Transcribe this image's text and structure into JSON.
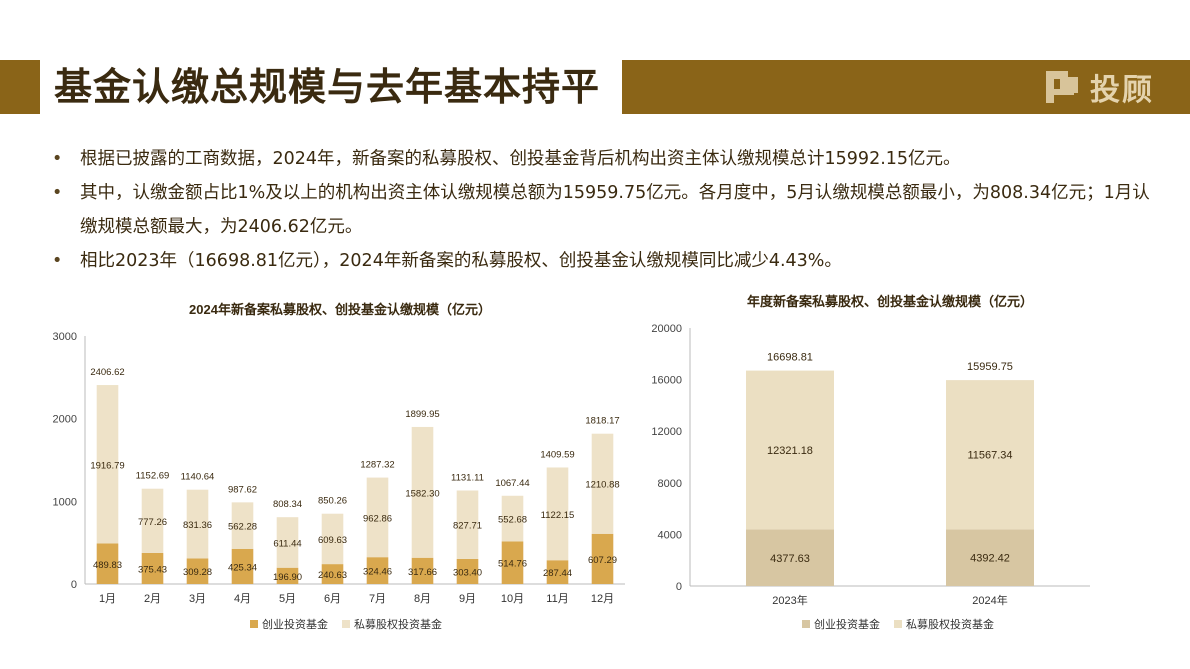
{
  "header": {
    "title": "基金认缴总规模与去年基本持平",
    "logo_text": "投顾"
  },
  "bullets": [
    "根据已披露的工商数据，2024年，新备案的私募股权、创投基金背后机构出资主体认缴规模总计15992.15亿元。",
    "其中，认缴金额占比1%及以上的机构出资主体认缴规模总额为15959.75亿元。各月度中，5月认缴规模总额最小，为808.34亿元；1月认缴规模总额最大，为2406.62亿元。",
    "相比2023年（16698.81亿元），2024年新备案的私募股权、创投基金认缴规模同比减少4.43%。"
  ],
  "colors": {
    "accent": "#8a6418",
    "venture": "#d9a84e",
    "private_equity": "#eee2c8",
    "venture_2": "#d7c6a2",
    "pe_2": "#ebdfc2"
  },
  "chart_data": [
    {
      "type": "bar",
      "stacked": true,
      "title": "2024年新备案私募股权、创投基金认缴规模（亿元）",
      "categories": [
        "1月",
        "2月",
        "3月",
        "4月",
        "5月",
        "6月",
        "7月",
        "8月",
        "9月",
        "10月",
        "11月",
        "12月"
      ],
      "series": [
        {
          "name": "创业投资基金",
          "values": [
            489.83,
            375.43,
            309.28,
            425.34,
            196.9,
            240.63,
            324.46,
            317.66,
            303.4,
            514.76,
            287.44,
            607.29
          ],
          "labels": [
            "489.83",
            "375.43",
            "309.28",
            "425.34",
            "196.90",
            "240.63",
            "324.46",
            "317.66",
            "303.40",
            "514.76",
            "287.44",
            "607.29"
          ]
        },
        {
          "name": "私募股权投资基金",
          "values": [
            1916.79,
            777.26,
            831.36,
            562.28,
            611.44,
            609.63,
            962.86,
            1582.3,
            827.71,
            552.68,
            1122.15,
            1210.88
          ],
          "labels": [
            "1916.79",
            "777.26",
            "831.36",
            "562.28",
            "611.44",
            "609.63",
            "962.86",
            "1582.30",
            "827.71",
            "552.68",
            "1122.15",
            "1210.88"
          ]
        }
      ],
      "totals": [
        "2406.62",
        "1152.69",
        "1140.64",
        "987.62",
        "808.34",
        "850.26",
        "1287.32",
        "1899.95",
        "1131.11",
        "1067.44",
        "1409.59",
        "1818.17"
      ],
      "total_values": [
        2406.62,
        1152.69,
        1140.64,
        987.62,
        808.34,
        850.26,
        1287.32,
        1899.95,
        1131.11,
        1067.44,
        1409.59,
        1818.17
      ],
      "ylim": [
        0,
        3000
      ],
      "yticks": [
        "0",
        "1000",
        "2000",
        "3000"
      ],
      "legend": "bottom"
    },
    {
      "type": "bar",
      "stacked": true,
      "title": "年度新备案私募股权、创投基金认缴规模（亿元）",
      "categories": [
        "2023年",
        "2024年"
      ],
      "series": [
        {
          "name": "创业投资基金",
          "values": [
            4377.63,
            4392.42
          ],
          "labels": [
            "4377.63",
            "4392.42"
          ]
        },
        {
          "name": "私募股权投资基金",
          "values": [
            12321.18,
            11567.34
          ],
          "labels": [
            "12321.18",
            "11567.34"
          ]
        }
      ],
      "totals": [
        "16698.81",
        "15959.75"
      ],
      "total_values": [
        16698.81,
        15959.75
      ],
      "ylim": [
        0,
        20000
      ],
      "yticks": [
        "0",
        "4000",
        "8000",
        "12000",
        "16000",
        "20000"
      ],
      "legend": "bottom"
    }
  ]
}
